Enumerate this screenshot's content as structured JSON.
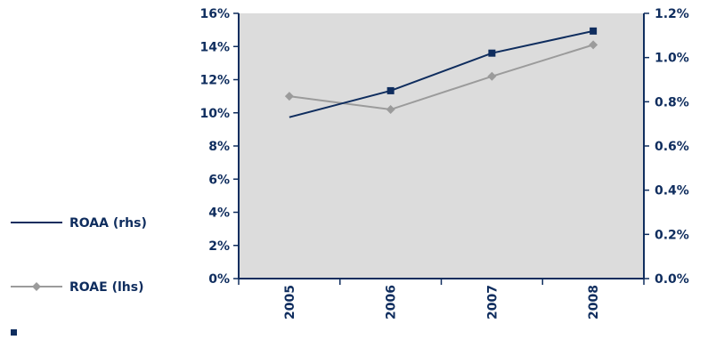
{
  "chart_data": {
    "type": "line",
    "title": "",
    "categories": [
      "2005",
      "2006",
      "2007",
      "2008"
    ],
    "y_left": {
      "ylim": [
        0,
        16
      ],
      "ticks": [
        "0%",
        "2%",
        "4%",
        "6%",
        "8%",
        "10%",
        "12%",
        "14%",
        "16%"
      ]
    },
    "y_right": {
      "ylim": [
        0,
        1.2
      ],
      "ticks": [
        "0.0%",
        "0.2%",
        "0.4%",
        "0.6%",
        "0.8%",
        "1.0%",
        "1.2%"
      ]
    },
    "series": [
      {
        "name": "ROAA (rhs)",
        "axis": "right",
        "values": [
          0.73,
          0.85,
          1.02,
          1.12
        ],
        "marker_on_first": false
      },
      {
        "name": "ROAE (lhs)",
        "axis": "left",
        "values": [
          11.0,
          10.2,
          12.2,
          14.1
        ],
        "marker_on_first": true
      }
    ],
    "grid": false,
    "legend_position": "left",
    "colors": {
      "roaa": "#0f2d5e",
      "roae": "#9b9b9b",
      "plot_background": "#dcdcdc",
      "axis": "#0f2d5e",
      "text": "#0f2d5e"
    }
  }
}
